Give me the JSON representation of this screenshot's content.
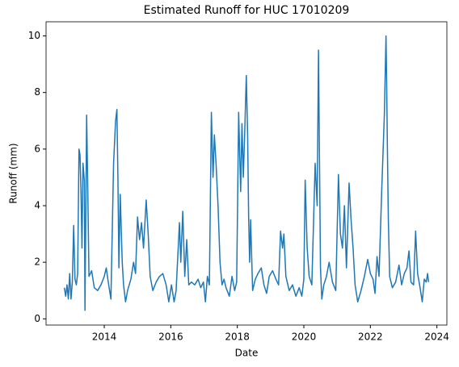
{
  "chart_data": {
    "type": "line",
    "title": "Estimated Runoff for HUC 17010209",
    "xlabel": "Date",
    "ylabel": "Runoff (mm)",
    "color": "#1f77b4",
    "x": [
      2012.8,
      2012.84,
      2012.88,
      2012.92,
      2012.96,
      2013.0,
      2013.04,
      2013.08,
      2013.12,
      2013.16,
      2013.2,
      2013.24,
      2013.27,
      2013.3,
      2013.33,
      2013.36,
      2013.4,
      2013.42,
      2013.47,
      2013.5,
      2013.54,
      2013.62,
      2013.7,
      2013.8,
      2013.9,
      2014.0,
      2014.06,
      2014.12,
      2014.2,
      2014.28,
      2014.34,
      2014.38,
      2014.41,
      2014.44,
      2014.48,
      2014.54,
      2014.58,
      2014.64,
      2014.7,
      2014.8,
      2014.88,
      2014.94,
      2015.0,
      2015.06,
      2015.12,
      2015.18,
      2015.26,
      2015.32,
      2015.38,
      2015.46,
      2015.56,
      2015.66,
      2015.76,
      2015.86,
      2015.94,
      2016.02,
      2016.1,
      2016.16,
      2016.26,
      2016.3,
      2016.36,
      2016.42,
      2016.48,
      2016.54,
      2016.62,
      2016.72,
      2016.82,
      2016.9,
      2016.98,
      2017.04,
      2017.1,
      2017.16,
      2017.22,
      2017.27,
      2017.31,
      2017.36,
      2017.42,
      2017.48,
      2017.54,
      2017.6,
      2017.66,
      2017.76,
      2017.84,
      2017.92,
      2017.98,
      2018.04,
      2018.1,
      2018.14,
      2018.18,
      2018.22,
      2018.27,
      2018.31,
      2018.34,
      2018.37,
      2018.4,
      2018.46,
      2018.54,
      2018.62,
      2018.72,
      2018.8,
      2018.88,
      2018.96,
      2019.06,
      2019.16,
      2019.24,
      2019.3,
      2019.36,
      2019.4,
      2019.46,
      2019.56,
      2019.66,
      2019.76,
      2019.86,
      2019.94,
      2020.0,
      2020.04,
      2020.1,
      2020.16,
      2020.24,
      2020.34,
      2020.4,
      2020.44,
      2020.47,
      2020.5,
      2020.54,
      2020.6,
      2020.68,
      2020.76,
      2020.86,
      2020.96,
      2021.04,
      2021.1,
      2021.16,
      2021.22,
      2021.28,
      2021.36,
      2021.42,
      2021.48,
      2021.54,
      2021.62,
      2021.72,
      2021.82,
      2021.92,
      2022.0,
      2022.08,
      2022.14,
      2022.2,
      2022.26,
      2022.34,
      2022.42,
      2022.47,
      2022.49,
      2022.51,
      2022.54,
      2022.58,
      2022.66,
      2022.76,
      2022.86,
      2022.94,
      2023.02,
      2023.1,
      2023.16,
      2023.22,
      2023.3,
      2023.36,
      2023.42,
      2023.48,
      2023.56,
      2023.62,
      2023.68,
      2023.72,
      2023.75
    ],
    "values": [
      1.1,
      0.8,
      1.2,
      0.7,
      1.6,
      0.7,
      1.3,
      3.3,
      1.4,
      1.2,
      1.6,
      6.0,
      5.8,
      4.5,
      2.5,
      5.5,
      4.9,
      0.3,
      7.2,
      4.9,
      1.5,
      1.7,
      1.1,
      1.0,
      1.2,
      1.5,
      1.8,
      1.3,
      0.7,
      5.5,
      7.0,
      7.4,
      5.0,
      1.8,
      4.4,
      2.0,
      1.2,
      0.6,
      1.0,
      1.4,
      2.0,
      1.6,
      3.6,
      2.8,
      3.4,
      2.5,
      4.2,
      3.0,
      1.5,
      1.0,
      1.3,
      1.5,
      1.6,
      1.2,
      0.6,
      1.2,
      0.6,
      1.0,
      3.4,
      2.0,
      3.8,
      1.5,
      2.8,
      1.2,
      1.3,
      1.2,
      1.4,
      1.1,
      1.3,
      0.6,
      1.5,
      1.2,
      7.3,
      5.0,
      6.5,
      5.5,
      4.0,
      2.0,
      1.2,
      1.4,
      1.1,
      0.8,
      1.5,
      1.0,
      1.3,
      7.3,
      4.5,
      6.9,
      5.0,
      6.5,
      8.6,
      6.5,
      3.6,
      2.0,
      3.5,
      1.0,
      1.4,
      1.6,
      1.8,
      1.2,
      0.9,
      1.5,
      1.7,
      1.4,
      1.2,
      3.1,
      2.5,
      3.0,
      1.5,
      1.0,
      1.2,
      0.8,
      1.1,
      0.8,
      1.4,
      4.9,
      2.5,
      1.5,
      1.2,
      5.5,
      4.0,
      9.5,
      5.7,
      1.8,
      0.7,
      1.2,
      1.5,
      2.0,
      1.3,
      1.0,
      5.1,
      3.0,
      2.5,
      4.0,
      1.8,
      4.8,
      3.5,
      2.5,
      1.2,
      0.6,
      1.0,
      1.5,
      2.1,
      1.6,
      1.4,
      0.9,
      2.2,
      1.5,
      4.5,
      7.2,
      10.0,
      8.3,
      6.2,
      3.5,
      1.5,
      1.1,
      1.3,
      1.9,
      1.2,
      1.6,
      1.8,
      2.4,
      1.3,
      1.2,
      3.1,
      1.6,
      1.2,
      0.6,
      1.4,
      1.3,
      1.6,
      1.3
    ],
    "xlim": [
      2012.25,
      2024.3
    ],
    "xticks": [
      2014,
      2016,
      2018,
      2020,
      2022,
      2024
    ],
    "ylim": [
      -0.22,
      10.5
    ],
    "yticks": [
      0,
      2,
      4,
      6,
      8,
      10
    ]
  }
}
